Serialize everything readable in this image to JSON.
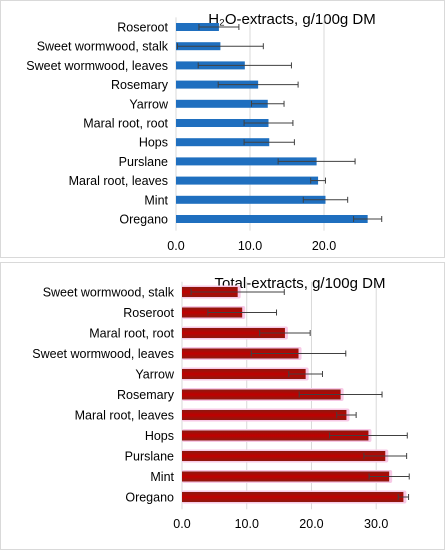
{
  "chart_data": [
    {
      "type": "bar",
      "orientation": "horizontal",
      "title": "H₂O-extracts, g/100g DM",
      "categories": [
        "Roseroot",
        "Sweet wormwood, stalk",
        "Sweet wormwood, leaves",
        "Rosemary",
        "Yarrow",
        "Maral root, root",
        "Hops",
        "Purslane",
        "Maral root, leaves",
        "Mint",
        "Oregano"
      ],
      "values": [
        5.8,
        6.0,
        9.3,
        11.1,
        12.4,
        12.5,
        12.6,
        19.0,
        19.2,
        20.2,
        25.9
      ],
      "errors": [
        2.7,
        5.8,
        6.3,
        5.4,
        2.2,
        3.3,
        3.4,
        5.2,
        1.0,
        3.0,
        1.9
      ],
      "xlim": [
        0,
        30
      ],
      "xticks": [
        0,
        10,
        20
      ],
      "xtick_labels": [
        "0.0",
        "10.0",
        "20.0"
      ],
      "grid": true,
      "colors": {
        "bar": "#1f6fbf",
        "error_bar": "#404040"
      }
    },
    {
      "type": "bar",
      "orientation": "horizontal",
      "title": "Total-extracts, g/100g DM",
      "categories": [
        "Sweet wormwood, stalk",
        "Roseroot",
        "Maral root, root",
        "Sweet wormwood, leaves",
        "Yarrow",
        "Rosemary",
        "Maral root, leaves",
        "Hops",
        "Purslane",
        "Mint",
        "Oregano"
      ],
      "values": [
        8.6,
        9.3,
        15.9,
        18.0,
        19.1,
        24.5,
        25.4,
        28.8,
        31.4,
        32.0,
        34.2
      ],
      "errors": [
        7.2,
        5.3,
        3.9,
        7.3,
        2.6,
        6.4,
        1.5,
        6.0,
        3.3,
        3.1,
        0.8
      ],
      "xlim": [
        0,
        38
      ],
      "xticks": [
        0,
        10,
        20,
        30
      ],
      "xtick_labels": [
        "0.0",
        "10.0",
        "20.0",
        "30.0"
      ],
      "grid": true,
      "colors": {
        "bar": "#8b1a10",
        "bar_center": "#c00000",
        "highlight": "#f7c9e6",
        "error_bar": "#404040"
      }
    }
  ]
}
